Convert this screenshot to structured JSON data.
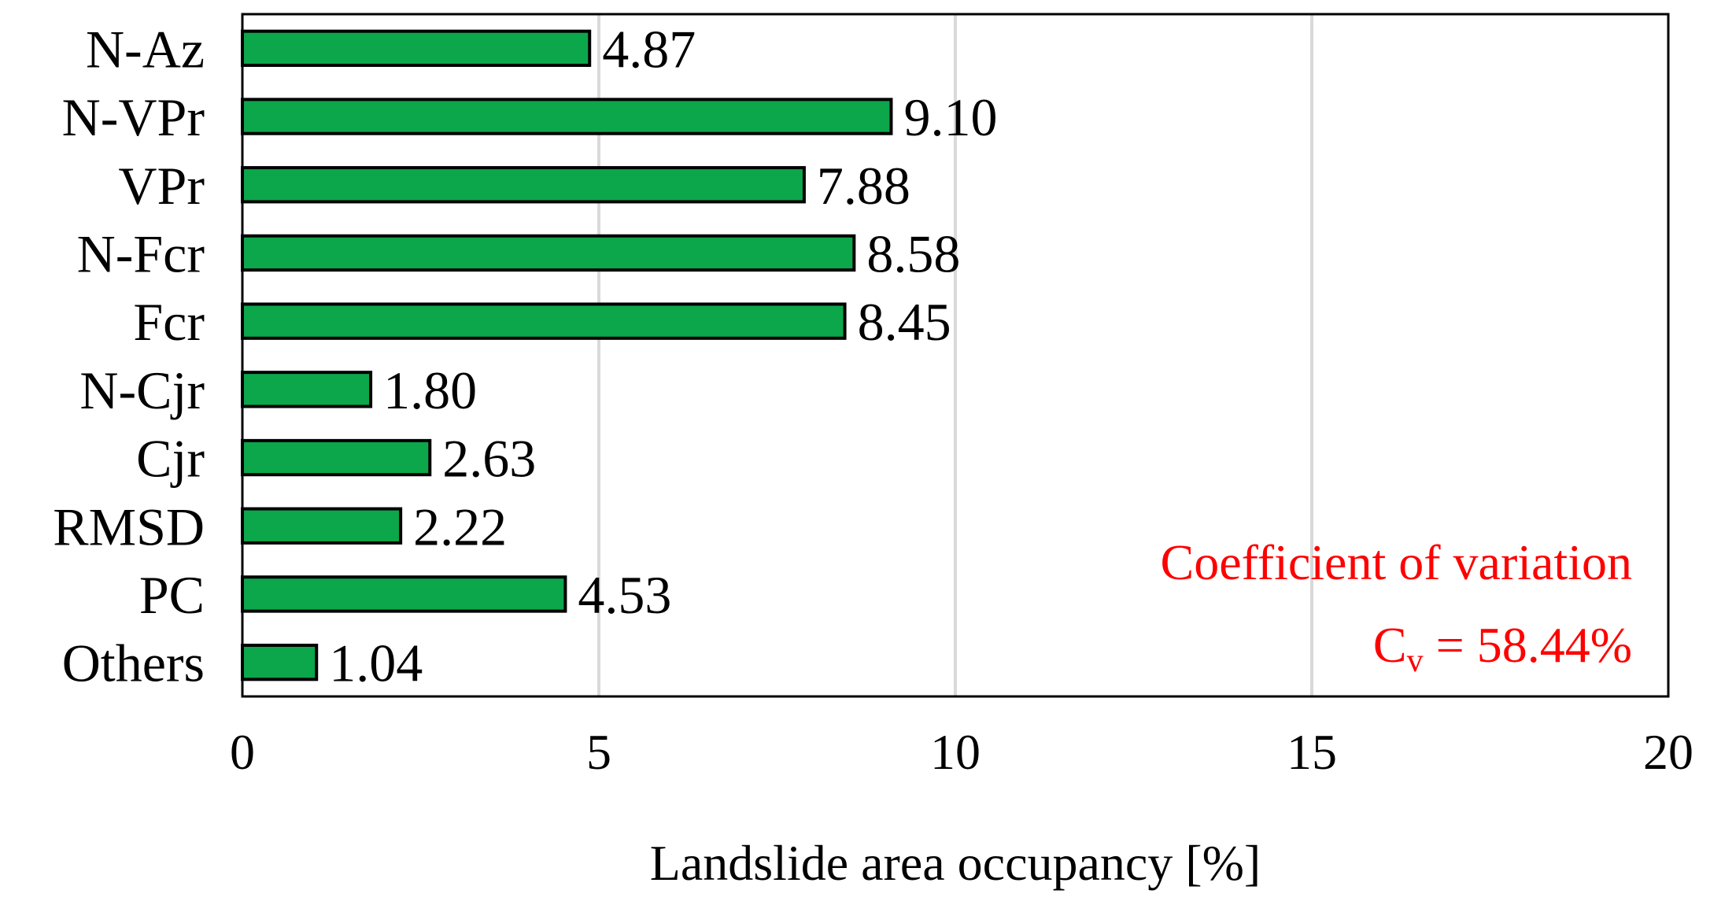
{
  "chart_data": {
    "type": "bar",
    "orientation": "horizontal",
    "categories": [
      "N-Az",
      "N-VPr",
      "VPr",
      "N-Fcr",
      "Fcr",
      "N-Cjr",
      "Cjr",
      "RMSD",
      "PC",
      "Others"
    ],
    "values": [
      4.87,
      9.1,
      7.88,
      8.58,
      8.45,
      1.8,
      2.63,
      2.22,
      4.53,
      1.04
    ],
    "value_labels": [
      "4.87",
      "9.10",
      "7.88",
      "8.58",
      "8.45",
      "1.80",
      "2.63",
      "2.22",
      "4.53",
      "1.04"
    ],
    "title": "",
    "xlabel": "Landslide area occupancy [%]",
    "ylabel": "",
    "xlim": [
      0,
      20
    ],
    "xticks": [
      "0",
      "5",
      "10",
      "15",
      "20"
    ],
    "grid": "vertical",
    "bar_color": "#0ca64b",
    "bar_edge_color": "#000000",
    "grid_color": "#d9d9d9",
    "annotation": {
      "line1": "Coefficient of variation",
      "symbol": "C",
      "subscript": "v",
      "equation": " = 58.44%",
      "color": "#ff0000",
      "placement": "bottom-right"
    }
  }
}
